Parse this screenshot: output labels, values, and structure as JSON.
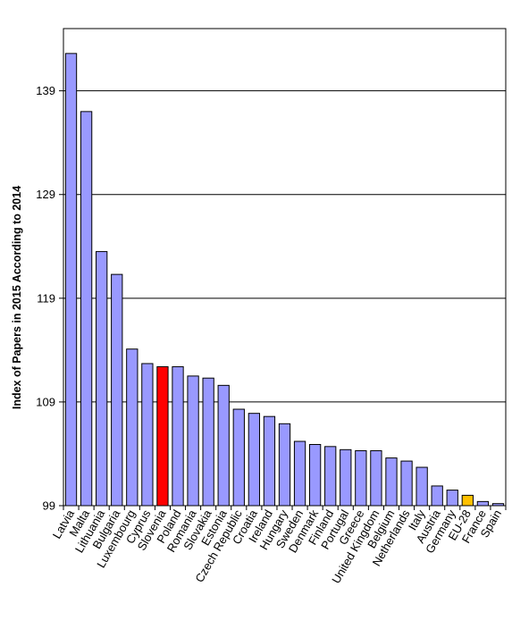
{
  "chart_data": {
    "type": "bar",
    "title": "",
    "xlabel": "",
    "ylabel": "Index of Papers in 2015  According to 2014",
    "ylim": [
      99,
      145
    ],
    "yticks": [
      99,
      109,
      119,
      129,
      139
    ],
    "grid": true,
    "legend": "none",
    "categories": [
      "Latvia",
      "Malta",
      "Lithuania",
      "Bulgaria",
      "Luxembourg",
      "Cyprus",
      "Slovenia",
      "Poland",
      "Romania",
      "Slovakia",
      "Estonia",
      "Czech Republic",
      "Croatia",
      "Ireland",
      "Hungary",
      "Sweden",
      "Denmark",
      "Finland",
      "Portugal",
      "Greece",
      "United Kingdom",
      "Belgium",
      "Netherlands",
      "Italy",
      "Austria",
      "Germany",
      "EU-28",
      "France",
      "Spain"
    ],
    "values": [
      142.6,
      137.0,
      123.5,
      121.3,
      114.1,
      112.7,
      112.4,
      112.4,
      111.5,
      111.3,
      110.6,
      108.3,
      107.9,
      107.6,
      106.9,
      105.2,
      104.9,
      104.7,
      104.4,
      104.3,
      104.3,
      103.6,
      103.3,
      102.7,
      100.9,
      100.5,
      100.0,
      99.4,
      99.2
    ],
    "colors": {
      "default": "#9999ff",
      "highlight_slovenia": "#ff0000",
      "highlight_eu28": "#ffc000",
      "gridline": "#000000"
    },
    "highlights": {
      "Slovenia": "#ff0000",
      "EU-28": "#ffc000"
    }
  }
}
